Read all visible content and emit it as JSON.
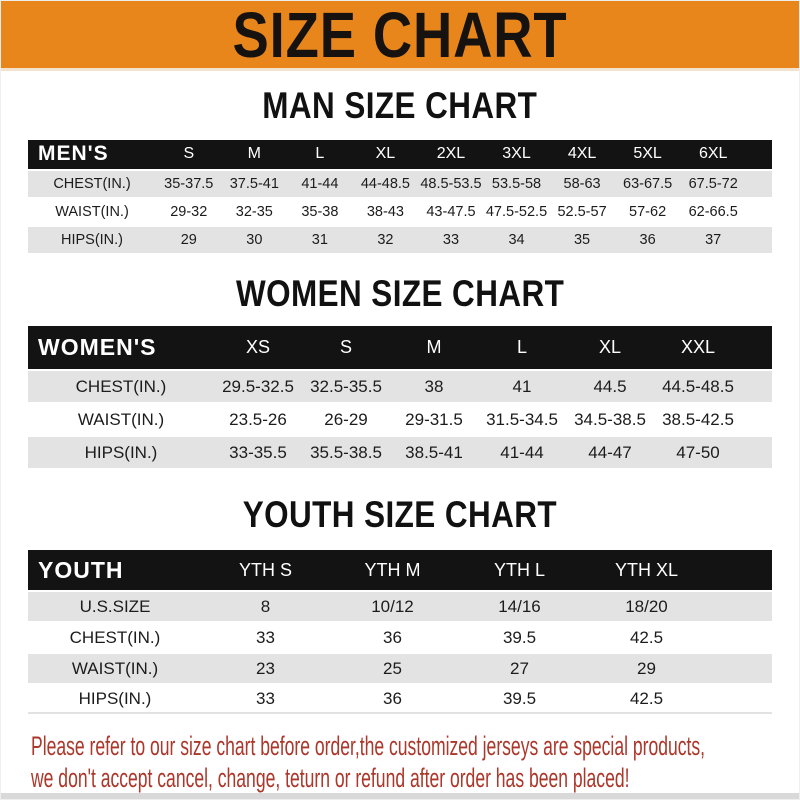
{
  "banner": {
    "title": "SIZE CHART"
  },
  "sections": [
    {
      "heading": "MAN SIZE CHART",
      "table_label": "MEN'S",
      "columns": [
        "S",
        "M",
        "L",
        "XL",
        "2XL",
        "3XL",
        "4XL",
        "5XL",
        "6XL"
      ],
      "rows": [
        {
          "label": "CHEST(IN.)",
          "values": [
            "35-37.5",
            "37.5-41",
            "41-44",
            "44-48.5",
            "48.5-53.5",
            "53.5-58",
            "58-63",
            "63-67.5",
            "67.5-72"
          ]
        },
        {
          "label": "WAIST(IN.)",
          "values": [
            "29-32",
            "32-35",
            "35-38",
            "38-43",
            "43-47.5",
            "47.5-52.5",
            "52.5-57",
            "57-62",
            "62-66.5"
          ]
        },
        {
          "label": "HIPS(IN.)",
          "values": [
            "29",
            "30",
            "31",
            "32",
            "33",
            "34",
            "35",
            "36",
            "37"
          ]
        }
      ]
    },
    {
      "heading": "WOMEN SIZE CHART",
      "table_label": "WOMEN'S",
      "columns": [
        "XS",
        "S",
        "M",
        "L",
        "XL",
        "XXL"
      ],
      "rows": [
        {
          "label": "CHEST(IN.)",
          "values": [
            "29.5-32.5",
            "32.5-35.5",
            "38",
            "41",
            "44.5",
            "44.5-48.5"
          ]
        },
        {
          "label": "WAIST(IN.)",
          "values": [
            "23.5-26",
            "26-29",
            "29-31.5",
            "31.5-34.5",
            "34.5-38.5",
            "38.5-42.5"
          ]
        },
        {
          "label": "HIPS(IN.)",
          "values": [
            "33-35.5",
            "35.5-38.5",
            "38.5-41",
            "41-44",
            "44-47",
            "47-50"
          ]
        }
      ]
    },
    {
      "heading": "YOUTH SIZE CHART",
      "table_label": "YOUTH",
      "columns": [
        "YTH S",
        "YTH M",
        "YTH L",
        "YTH XL"
      ],
      "rows": [
        {
          "label": "U.S.SIZE",
          "values": [
            "8",
            "10/12",
            "14/16",
            "18/20"
          ]
        },
        {
          "label": "CHEST(IN.)",
          "values": [
            "33",
            "36",
            "39.5",
            "42.5"
          ]
        },
        {
          "label": "WAIST(IN.)",
          "values": [
            "23",
            "25",
            "27",
            "29"
          ]
        },
        {
          "label": "HIPS(IN.)",
          "values": [
            "33",
            "36",
            "39.5",
            "42.5"
          ]
        }
      ]
    }
  ],
  "disclaimer": {
    "line1": "Please refer to our size chart before order,the customized jerseys are special products,",
    "line2": "we don't accept cancel, change, teturn or refund after order has been placed!"
  },
  "colors": {
    "banner_orange": "#E8861C",
    "table_header_black": "#131313",
    "row_gray": "#E3E3E3",
    "disclaimer_red": "#AC372B",
    "bottom_strip_gray": "#D9D9D9"
  }
}
